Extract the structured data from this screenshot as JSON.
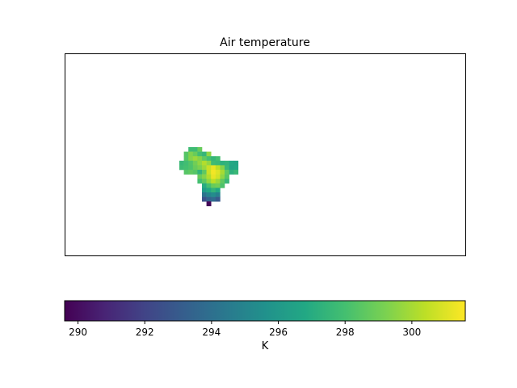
{
  "chart_data": {
    "type": "heatmap",
    "title": "Air temperature",
    "xlabel": "",
    "ylabel": "",
    "grid": false,
    "colormap": "viridis",
    "colorbar": {
      "label": "K",
      "range": [
        289.6,
        301.6
      ],
      "ticks": [
        290,
        292,
        294,
        296,
        298,
        300
      ],
      "tick_labels": [
        "290",
        "292",
        "294",
        "296",
        "298",
        "300"
      ],
      "orientation": "horizontal",
      "placement": "bottom"
    },
    "masked_cells": "transparent (no data)",
    "rows": [
      {
        "r": 0,
        "c0": 30,
        "values": [
          297.8,
          297.8,
          298.8
        ]
      },
      {
        "r": 1,
        "c0": 29,
        "values": [
          298.4,
          299.3,
          298.8,
          297.9,
          297.5,
          299.6
        ]
      },
      {
        "r": 2,
        "c0": 29,
        "values": [
          298.4,
          299.4,
          299.8,
          299.4,
          298.6,
          298.0,
          297.5,
          298.0
        ]
      },
      {
        "r": 3,
        "c0": 28,
        "values": [
          297.6,
          297.9,
          298.3,
          299.0,
          299.6,
          300.2,
          299.6,
          297.8,
          297.6,
          297.2,
          297.4,
          296.8,
          296.6
        ]
      },
      {
        "r": 4,
        "c0": 28,
        "values": [
          297.8,
          298.0,
          298.2,
          298.8,
          299.2,
          299.8,
          300.6,
          301.2,
          300.4,
          299.4,
          297.6,
          296.6,
          296.8
        ]
      },
      {
        "r": 5,
        "c0": 29,
        "values": [
          298.4,
          298.6,
          298.4,
          297.4,
          298.6,
          300.6,
          301.4,
          301.0,
          300.0,
          298.6,
          297.2,
          297.6
        ]
      },
      {
        "r": 6,
        "c0": 32,
        "values": [
          298.8,
          299.4,
          300.2,
          301.2,
          300.8,
          299.6,
          298.4
        ]
      },
      {
        "r": 7,
        "c0": 32,
        "values": [
          298.0,
          298.6,
          299.6,
          300.4,
          299.8,
          298.6,
          297.6
        ]
      },
      {
        "r": 8,
        "c0": 33,
        "values": [
          297.0,
          298.0,
          298.8,
          299.0,
          298.2
        ]
      },
      {
        "r": 9,
        "c0": 33,
        "values": [
          296.2,
          296.8,
          297.4,
          296.8
        ]
      },
      {
        "r": 10,
        "c0": 33,
        "values": [
          294.2,
          295.0,
          295.4,
          294.8
        ]
      },
      {
        "r": 11,
        "c0": 33,
        "values": [
          292.6,
          293.4,
          293.8,
          293.0
        ]
      },
      {
        "r": 12,
        "c0": 34,
        "values": [
          289.8
        ]
      }
    ]
  }
}
